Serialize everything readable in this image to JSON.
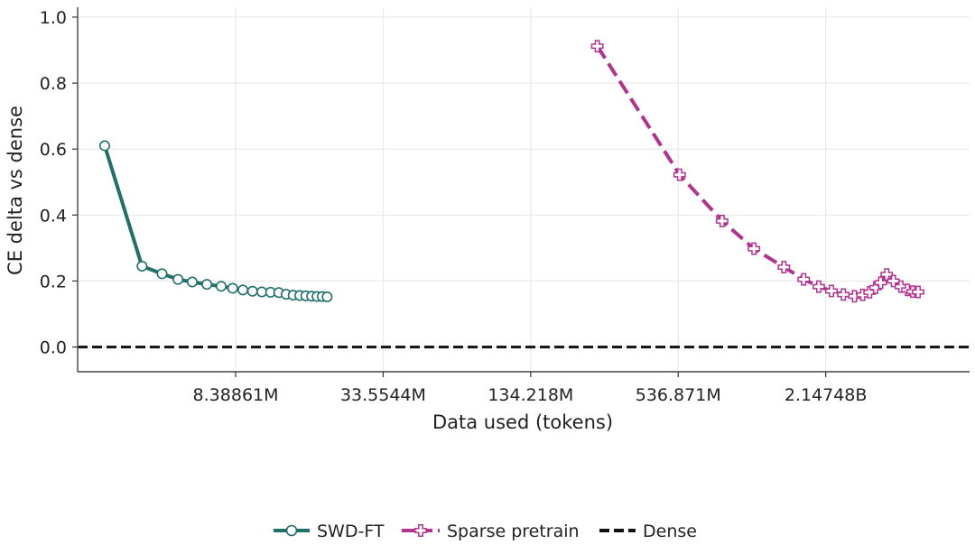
{
  "chart_data": {
    "type": "line",
    "xlabel": "Data used (tokens)",
    "ylabel": "CE delta vs dense",
    "x_scale": "log2",
    "xlim": [
      1900000,
      8300000000
    ],
    "ylim": [
      -0.075,
      1.03
    ],
    "grid": true,
    "legend_position": "bottom-center",
    "x_ticks": [
      {
        "value": 8388608,
        "label": "8.38861M"
      },
      {
        "value": 33554432,
        "label": "33.5544M"
      },
      {
        "value": 134217728,
        "label": "134.218M"
      },
      {
        "value": 536870912,
        "label": "536.871M"
      },
      {
        "value": 2147483648,
        "label": "2.14748B"
      }
    ],
    "y_ticks": [
      {
        "value": 0.0,
        "label": "0.0"
      },
      {
        "value": 0.2,
        "label": "0.2"
      },
      {
        "value": 0.4,
        "label": "0.4"
      },
      {
        "value": 0.6,
        "label": "0.6"
      },
      {
        "value": 0.8,
        "label": "0.8"
      },
      {
        "value": 1.0,
        "label": "1.0"
      }
    ],
    "series": [
      {
        "name": "SWD-FT",
        "color": "#1f6f6a",
        "line_style": "solid",
        "marker": "circle",
        "x": [
          2450000,
          3480000,
          4200000,
          4880000,
          5580000,
          6400000,
          7320000,
          8160000,
          8980000,
          9830000,
          10730000,
          11650000,
          12580000,
          13480000,
          14400000,
          15330000,
          16220000,
          17130000,
          18030000,
          18930000,
          19820000
        ],
        "y": [
          0.61,
          0.245,
          0.222,
          0.205,
          0.197,
          0.19,
          0.184,
          0.178,
          0.173,
          0.169,
          0.167,
          0.166,
          0.165,
          0.16,
          0.157,
          0.156,
          0.155,
          0.154,
          0.153,
          0.153,
          0.152
        ]
      },
      {
        "name": "Sparse pretrain",
        "color": "#b2338f",
        "line_style": "dashed",
        "marker": "plus",
        "x": [
          251000000,
          544000000,
          811000000,
          1094000000,
          1450000000,
          1746000000,
          2011000000,
          2267000000,
          2535000000,
          2813000000,
          3040000000,
          3244000000,
          3430000000,
          3600000000,
          3810000000,
          4058000000,
          4353000000,
          4628000000,
          4862000000,
          5118000000
        ],
        "y": [
          0.912,
          0.522,
          0.382,
          0.298,
          0.242,
          0.205,
          0.183,
          0.17,
          0.159,
          0.154,
          0.158,
          0.166,
          0.18,
          0.195,
          0.22,
          0.2,
          0.183,
          0.173,
          0.168,
          0.167
        ]
      },
      {
        "name": "Dense",
        "color": "#111111",
        "line_style": "dashed",
        "marker": "none",
        "y_constant": 0.0
      }
    ]
  }
}
